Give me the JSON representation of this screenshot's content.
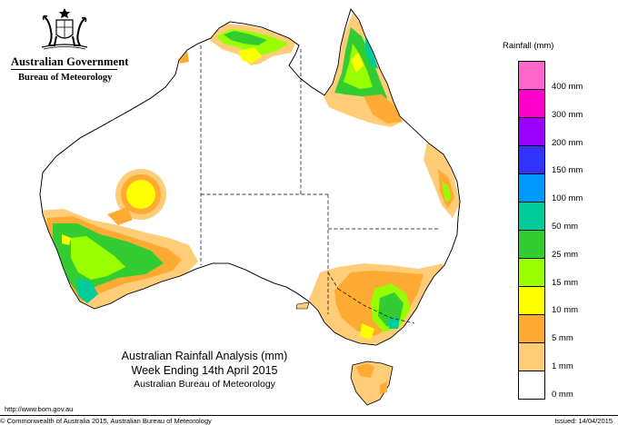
{
  "agency": {
    "government": "Australian Government",
    "bureau": "Bureau of Meteorology"
  },
  "legend": {
    "title": "Rainfall (mm)",
    "bins": [
      {
        "label": "400 mm",
        "color": "#ff66cc"
      },
      {
        "label": "300 mm",
        "color": "#ff00cc"
      },
      {
        "label": "200 mm",
        "color": "#9900ff"
      },
      {
        "label": "150 mm",
        "color": "#3333ff"
      },
      {
        "label": "100 mm",
        "color": "#0099ff"
      },
      {
        "label": "50 mm",
        "color": "#00cc99"
      },
      {
        "label": "25 mm",
        "color": "#33cc33"
      },
      {
        "label": "15 mm",
        "color": "#99ff00"
      },
      {
        "label": "10 mm",
        "color": "#ffff00"
      },
      {
        "label": "5 mm",
        "color": "#ffaa33"
      },
      {
        "label": "1 mm",
        "color": "#ffcc77"
      },
      {
        "label": "0 mm",
        "color": "#ffffff"
      }
    ]
  },
  "caption": {
    "line1": "Australian Rainfall Analysis (mm)",
    "line2": "Week Ending 14th April 2015",
    "line3": "Australian Bureau of Meteorology"
  },
  "footer": {
    "url": "http://www.bom.gov.au",
    "copyright": "© Commonwealth of Australia 2015, Australian Bureau of Meteorology",
    "issued": "Issued: 14/04/2015"
  }
}
